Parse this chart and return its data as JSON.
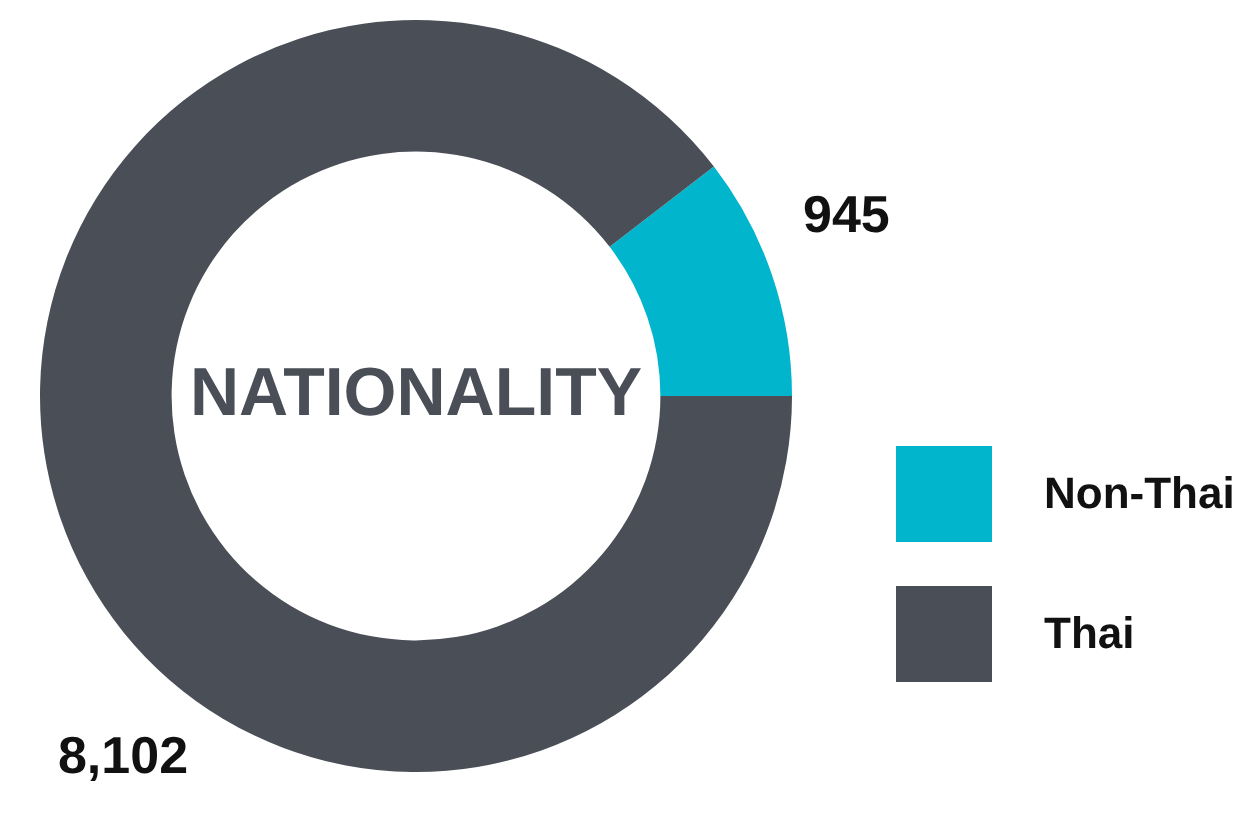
{
  "chart_data": {
    "type": "donut",
    "title": "NATIONALITY",
    "categories": [
      "Non-Thai",
      "Thai"
    ],
    "values": [
      945,
      8102
    ],
    "value_labels": [
      "945",
      "8,102"
    ],
    "colors": [
      "#00b5cc",
      "#4a4e57"
    ],
    "legend": "right"
  }
}
